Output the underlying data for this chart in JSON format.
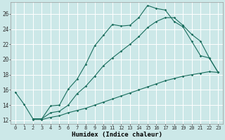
{
  "xlabel": "Humidex (Indice chaleur)",
  "bg_color": "#cce8e8",
  "grid_color": "#b8d8d8",
  "line_color": "#1a6e5e",
  "xlim": [
    -0.5,
    23.5
  ],
  "ylim": [
    11.5,
    27.5
  ],
  "xticks": [
    0,
    1,
    2,
    3,
    4,
    5,
    6,
    7,
    8,
    9,
    10,
    11,
    12,
    13,
    14,
    15,
    16,
    17,
    18,
    19,
    20,
    21,
    22,
    23
  ],
  "yticks": [
    12,
    14,
    16,
    18,
    20,
    22,
    24,
    26
  ],
  "line1_x": [
    0,
    1,
    2,
    3,
    4,
    5,
    6,
    7,
    8,
    9,
    10,
    11,
    12,
    13,
    14,
    15,
    16,
    17,
    18,
    19,
    20,
    21,
    22,
    23
  ],
  "line1_y": [
    15.7,
    14.1,
    12.2,
    12.2,
    13.9,
    14.0,
    16.1,
    17.4,
    19.4,
    21.8,
    23.2,
    24.6,
    24.4,
    24.5,
    25.5,
    27.1,
    26.7,
    26.5,
    25.0,
    24.3,
    22.4,
    20.5,
    20.2,
    18.3
  ],
  "line2_x": [
    2,
    3,
    4,
    5,
    6,
    7,
    8,
    9,
    10,
    11,
    12,
    13,
    14,
    15,
    16,
    17,
    18,
    19,
    20,
    21,
    22,
    23
  ],
  "line2_y": [
    12.2,
    12.2,
    13.0,
    13.2,
    14.0,
    15.5,
    16.5,
    17.8,
    19.2,
    20.2,
    21.1,
    22.0,
    23.0,
    24.2,
    25.0,
    25.5,
    25.5,
    24.5,
    23.3,
    22.4,
    20.2,
    18.3
  ],
  "line3_x": [
    2,
    3,
    4,
    5,
    6,
    7,
    8,
    9,
    10,
    11,
    12,
    13,
    14,
    15,
    16,
    17,
    18,
    19,
    20,
    21,
    22,
    23
  ],
  "line3_y": [
    12.1,
    12.1,
    12.4,
    12.6,
    13.0,
    13.3,
    13.6,
    14.0,
    14.4,
    14.8,
    15.2,
    15.6,
    16.0,
    16.4,
    16.8,
    17.2,
    17.5,
    17.8,
    18.0,
    18.2,
    18.4,
    18.3
  ],
  "tick_fontsize": 5.0,
  "xlabel_fontsize": 6.5
}
